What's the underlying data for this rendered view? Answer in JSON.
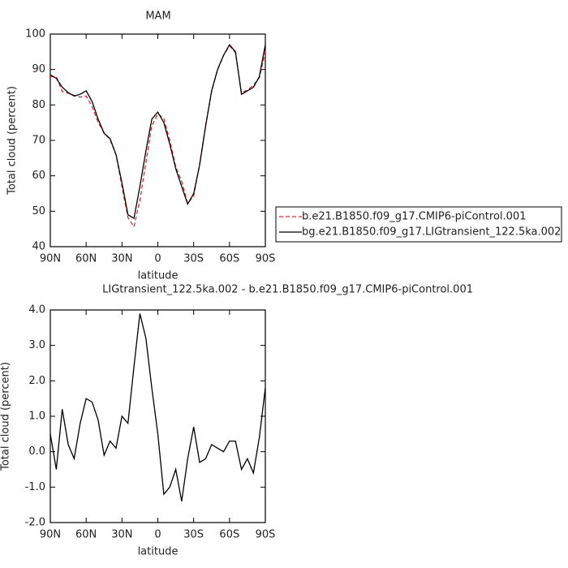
{
  "chart_data": [
    {
      "type": "line",
      "title": "MAM",
      "x_label": "latitude",
      "y_label": "Total cloud (percent)",
      "x": [
        90,
        85,
        80,
        75,
        70,
        65,
        60,
        55,
        50,
        45,
        40,
        35,
        30,
        25,
        20,
        15,
        10,
        5,
        0,
        -5,
        -10,
        -15,
        -20,
        -25,
        -30,
        -35,
        -40,
        -45,
        -50,
        -55,
        -60,
        -65,
        -70,
        -75,
        -80,
        -85,
        -90
      ],
      "xlim": [
        90,
        -90
      ],
      "xticks": [
        {
          "value": 90,
          "label": "90N"
        },
        {
          "value": 60,
          "label": "60N"
        },
        {
          "value": 30,
          "label": "30N"
        },
        0,
        {
          "value": -30,
          "label": "30S"
        },
        {
          "value": -60,
          "label": "60S"
        },
        {
          "value": -90,
          "label": "90S"
        }
      ],
      "ylim": [
        40,
        100
      ],
      "yticks": [
        40,
        50,
        60,
        70,
        80,
        90,
        100
      ],
      "legend": "right",
      "series": [
        {
          "name": "b.e21.B1850.f09_g17.CMIP6-piControl.001",
          "color": "#e8242a",
          "dash": true,
          "values": [
            88,
            88,
            83.8,
            83.3,
            82.7,
            82.2,
            82.5,
            79.6,
            75.1,
            72.1,
            70.2,
            65.9,
            57,
            48.2,
            45.6,
            53.1,
            63.8,
            74.2,
            77.5,
            76.2,
            70,
            62.5,
            58.4,
            52.2,
            54.3,
            63.3,
            74.2,
            83.8,
            89.9,
            94,
            96.7,
            94.7,
            83.5,
            84.2,
            85.6,
            87.6,
            95.2
          ]
        },
        {
          "name": "bg.e21.B1850.f09_g17.LIGtransient_122.5ka.002",
          "color": "#000000",
          "dash": false,
          "values": [
            88.5,
            87.5,
            85,
            83.5,
            82.5,
            83,
            84,
            81,
            76,
            72,
            70.5,
            66,
            58,
            49,
            48,
            57,
            67,
            76,
            78,
            75,
            69,
            62,
            57,
            52,
            55,
            63,
            74,
            84,
            90,
            94,
            97,
            95,
            83,
            84,
            85,
            88,
            97
          ]
        }
      ]
    },
    {
      "type": "line",
      "title": "LIGtransient_122.5ka.002 - b.e21.B1850.f09_g17.CMIP6-piControl.001",
      "x_label": "latitude",
      "y_label": "Total cloud (percent)",
      "x": [
        90,
        85,
        80,
        75,
        70,
        65,
        60,
        55,
        50,
        45,
        40,
        35,
        30,
        25,
        20,
        15,
        10,
        5,
        0,
        -5,
        -10,
        -15,
        -20,
        -25,
        -30,
        -35,
        -40,
        -45,
        -50,
        -55,
        -60,
        -65,
        -70,
        -75,
        -80,
        -85,
        -90
      ],
      "xlim": [
        90,
        -90
      ],
      "xticks": [
        {
          "value": 90,
          "label": "90N"
        },
        {
          "value": 60,
          "label": "60N"
        },
        {
          "value": 30,
          "label": "30N"
        },
        0,
        {
          "value": -30,
          "label": "30S"
        },
        {
          "value": -60,
          "label": "60S"
        },
        {
          "value": -90,
          "label": "90S"
        }
      ],
      "ylim": [
        -2,
        4
      ],
      "yticks": [
        {
          "value": -2,
          "label": "-2.0"
        },
        {
          "value": -1,
          "label": "-1.0"
        },
        {
          "value": 0,
          "label": "0.0"
        },
        {
          "value": 1,
          "label": "1.0"
        },
        {
          "value": 2,
          "label": "2.0"
        },
        {
          "value": 3,
          "label": "3.0"
        },
        {
          "value": 4,
          "label": "4.0"
        }
      ],
      "series": [
        {
          "color": "#000000",
          "dash": false,
          "values": [
            0.5,
            -0.5,
            1.2,
            0.2,
            -0.2,
            0.8,
            1.5,
            1.4,
            0.9,
            -0.1,
            0.3,
            0.1,
            1.0,
            0.8,
            2.4,
            3.9,
            3.2,
            1.8,
            0.5,
            -1.2,
            -1.0,
            -0.5,
            -1.4,
            -0.2,
            0.7,
            -0.3,
            -0.2,
            0.2,
            0.1,
            0.0,
            0.3,
            0.3,
            -0.5,
            -0.2,
            -0.6,
            0.4,
            1.8
          ]
        }
      ]
    }
  ]
}
